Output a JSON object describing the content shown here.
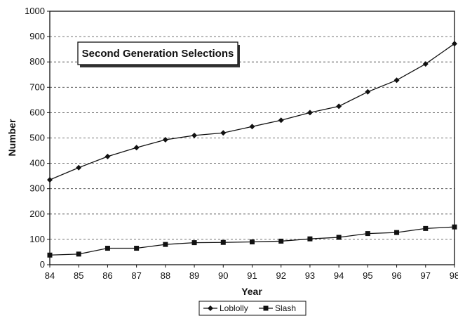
{
  "chart_data": {
    "type": "line",
    "title": "",
    "annotation": "Second Generation Selections",
    "xlabel": "Year",
    "ylabel": "Number",
    "x": [
      "84",
      "85",
      "86",
      "87",
      "88",
      "89",
      "90",
      "91",
      "92",
      "93",
      "94",
      "95",
      "96",
      "97",
      "98"
    ],
    "ylim": [
      0,
      1000
    ],
    "yticks": [
      0,
      100,
      200,
      300,
      400,
      500,
      600,
      700,
      800,
      900,
      1000
    ],
    "grid": "horizontal-dashed",
    "legend_position": "bottom",
    "series": [
      {
        "name": "Loblolly",
        "marker": "diamond",
        "color": "#111111",
        "values": [
          335,
          383,
          427,
          462,
          493,
          510,
          520,
          545,
          570,
          600,
          625,
          682,
          728,
          792,
          872
        ]
      },
      {
        "name": "Slash",
        "marker": "square",
        "color": "#111111",
        "values": [
          38,
          42,
          65,
          65,
          80,
          87,
          88,
          90,
          93,
          102,
          108,
          123,
          127,
          143,
          149
        ]
      }
    ]
  }
}
